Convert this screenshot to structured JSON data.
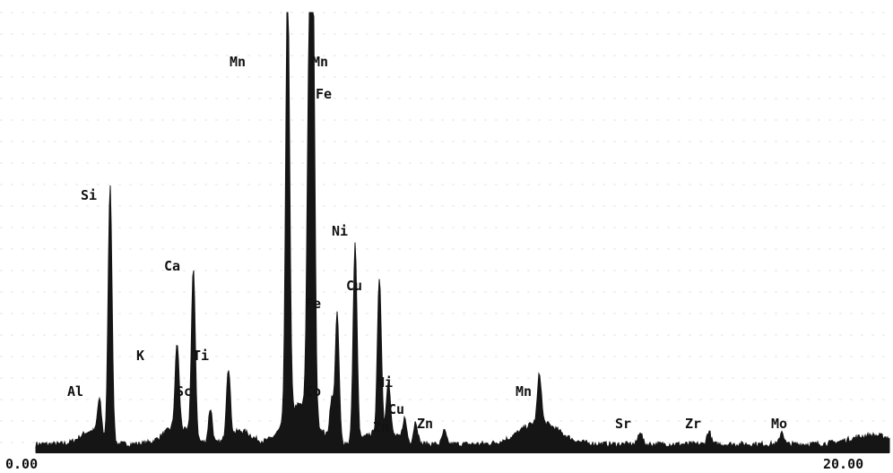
{
  "chart_data": {
    "type": "line",
    "title": "",
    "xlabel": "",
    "ylabel": "",
    "xlim": [
      0,
      20
    ],
    "ylim": [
      0,
      100
    ],
    "x_tick_labels": [
      "0.00",
      "20.00"
    ],
    "grid": true,
    "colors": {
      "trace": "#151515",
      "grid": "#e4e4e4",
      "background": "#ffffff"
    },
    "peaks": [
      {
        "label": "Al",
        "x": 1.49,
        "y": 8
      },
      {
        "label": "Si",
        "x": 1.74,
        "y": 58
      },
      {
        "label": "K",
        "x": 3.31,
        "y": 19
      },
      {
        "label": "Ca",
        "x": 3.69,
        "y": 38
      },
      {
        "label": "Sc",
        "x": 4.09,
        "y": 8
      },
      {
        "label": "Ti",
        "x": 4.51,
        "y": 16
      },
      {
        "label": "Mn",
        "x": 5.9,
        "y": 100
      },
      {
        "label": "Mn",
        "x": 6.49,
        "y": 100
      },
      {
        "label": "Fe",
        "x": 6.4,
        "y": 74
      },
      {
        "label": "Fe",
        "x": 7.06,
        "y": 29
      },
      {
        "label": "Co",
        "x": 6.93,
        "y": 9
      },
      {
        "label": "Ni",
        "x": 7.48,
        "y": 45
      },
      {
        "label": "Cu",
        "x": 8.05,
        "y": 35
      },
      {
        "label": "Ni",
        "x": 8.26,
        "y": 12
      },
      {
        "label": "Zn",
        "x": 8.64,
        "y": 5
      },
      {
        "label": "Cu",
        "x": 8.9,
        "y": 5
      },
      {
        "label": "Zn",
        "x": 9.57,
        "y": 3
      },
      {
        "label": "Mn",
        "x": 11.8,
        "y": 11
      },
      {
        "label": "Sr",
        "x": 14.16,
        "y": 3
      },
      {
        "label": "Zr",
        "x": 15.77,
        "y": 3
      },
      {
        "label": "Mo",
        "x": 17.48,
        "y": 3
      }
    ]
  }
}
